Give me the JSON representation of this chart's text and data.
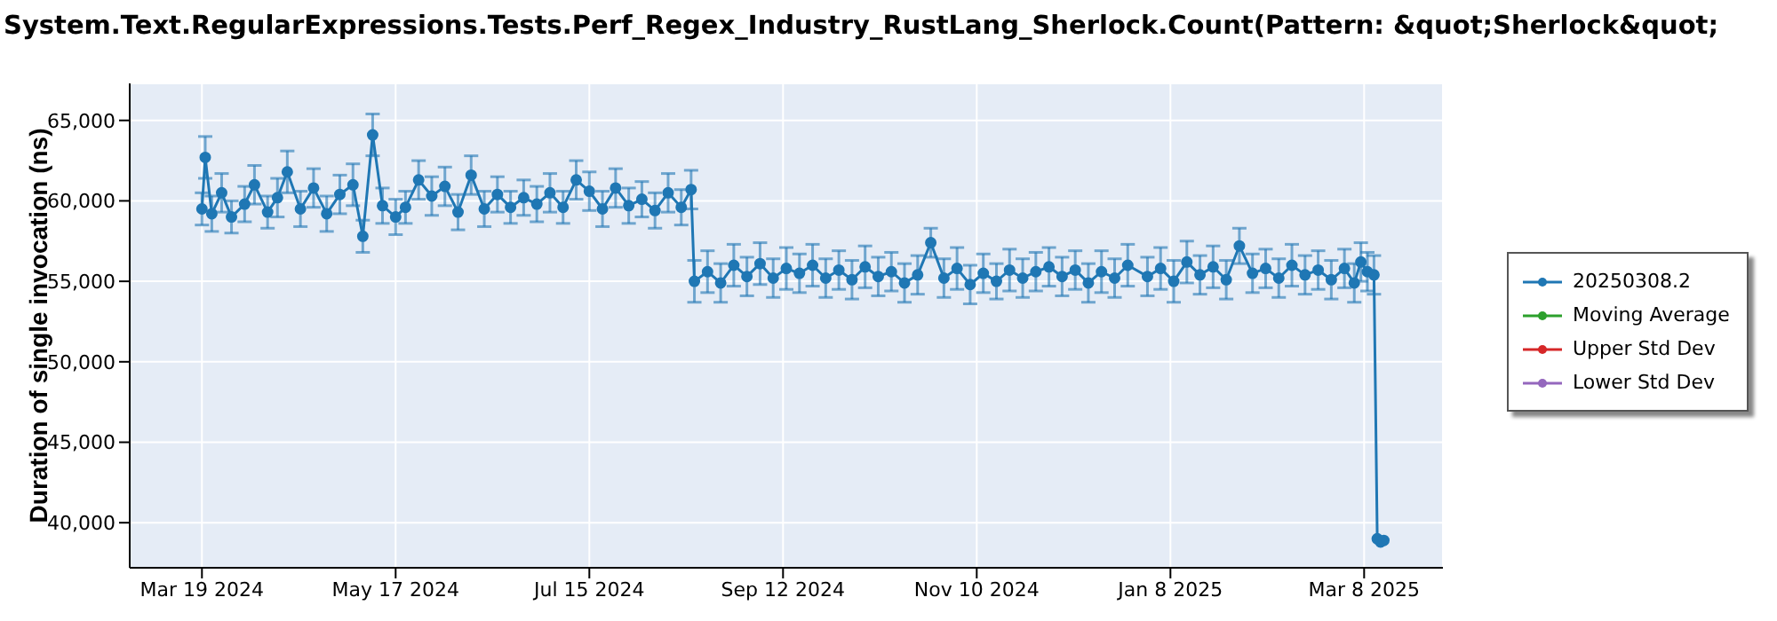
{
  "chart_data": {
    "type": "line",
    "title": "System.Text.RegularExpressions.Tests.Perf_Regex_Industry_RustLang_Sherlock.Count(Pattern: &quot;Sherlock&quot;",
    "ylabel": "Duration of single invocation (ns)",
    "xlim": [
      "2024-02-26",
      "2025-04-01"
    ],
    "xticks": [
      {
        "value": "2024-03-19",
        "label": "Mar 19 2024"
      },
      {
        "value": "2024-05-17",
        "label": "May 17 2024"
      },
      {
        "value": "2024-07-15",
        "label": "Jul 15 2024"
      },
      {
        "value": "2024-09-12",
        "label": "Sep 12 2024"
      },
      {
        "value": "2024-11-10",
        "label": "Nov 10 2024"
      },
      {
        "value": "2025-01-08",
        "label": "Jan 8 2025"
      },
      {
        "value": "2025-03-08",
        "label": "Mar 8 2025"
      }
    ],
    "ylim": [
      37200,
      67300
    ],
    "yticks": [
      {
        "value": 40000,
        "label": "40,000"
      },
      {
        "value": 45000,
        "label": "45,000"
      },
      {
        "value": 50000,
        "label": "50,000"
      },
      {
        "value": 55000,
        "label": "55,000"
      },
      {
        "value": 60000,
        "label": "60,000"
      },
      {
        "value": 65000,
        "label": "65,000"
      }
    ],
    "grid": true,
    "legend": "right",
    "marker": "circle",
    "line_style": "solid",
    "series": [
      {
        "name": "20250308.2",
        "color": "#1f77b4",
        "x": [
          "2024-03-19",
          "2024-03-20",
          "2024-03-22",
          "2024-03-25",
          "2024-03-28",
          "2024-04-01",
          "2024-04-04",
          "2024-04-08",
          "2024-04-11",
          "2024-04-14",
          "2024-04-18",
          "2024-04-22",
          "2024-04-26",
          "2024-04-30",
          "2024-05-04",
          "2024-05-07",
          "2024-05-10",
          "2024-05-13",
          "2024-05-17",
          "2024-05-20",
          "2024-05-24",
          "2024-05-28",
          "2024-06-01",
          "2024-06-05",
          "2024-06-09",
          "2024-06-13",
          "2024-06-17",
          "2024-06-21",
          "2024-06-25",
          "2024-06-29",
          "2024-07-03",
          "2024-07-07",
          "2024-07-11",
          "2024-07-15",
          "2024-07-19",
          "2024-07-23",
          "2024-07-27",
          "2024-07-31",
          "2024-08-04",
          "2024-08-08",
          "2024-08-12",
          "2024-08-15",
          "2024-08-16",
          "2024-08-20",
          "2024-08-24",
          "2024-08-28",
          "2024-09-01",
          "2024-09-05",
          "2024-09-09",
          "2024-09-13",
          "2024-09-17",
          "2024-09-21",
          "2024-09-25",
          "2024-09-29",
          "2024-10-03",
          "2024-10-07",
          "2024-10-11",
          "2024-10-15",
          "2024-10-19",
          "2024-10-23",
          "2024-10-27",
          "2024-10-31",
          "2024-11-04",
          "2024-11-08",
          "2024-11-12",
          "2024-11-16",
          "2024-11-20",
          "2024-11-24",
          "2024-11-28",
          "2024-12-02",
          "2024-12-06",
          "2024-12-10",
          "2024-12-14",
          "2024-12-18",
          "2024-12-22",
          "2024-12-26",
          "2025-01-01",
          "2025-01-05",
          "2025-01-09",
          "2025-01-13",
          "2025-01-17",
          "2025-01-21",
          "2025-01-25",
          "2025-01-29",
          "2025-02-02",
          "2025-02-06",
          "2025-02-10",
          "2025-02-14",
          "2025-02-18",
          "2025-02-22",
          "2025-02-26",
          "2025-03-02",
          "2025-03-05",
          "2025-03-07",
          "2025-03-09",
          "2025-03-11",
          "2025-03-12",
          "2025-03-13",
          "2025-03-14"
        ],
        "values": [
          59500,
          62700,
          59200,
          60500,
          59000,
          59800,
          61000,
          59300,
          60200,
          61800,
          59500,
          60800,
          59200,
          60400,
          61000,
          57800,
          64100,
          59700,
          59000,
          59600,
          61300,
          60300,
          60900,
          59300,
          61600,
          59500,
          60400,
          59600,
          60200,
          59800,
          60500,
          59600,
          61300,
          60600,
          59500,
          60800,
          59700,
          60100,
          59400,
          60500,
          59600,
          60700,
          55000,
          55600,
          54900,
          56000,
          55300,
          56100,
          55200,
          55800,
          55500,
          56000,
          55200,
          55700,
          55100,
          55900,
          55300,
          55600,
          54900,
          55400,
          57400,
          55200,
          55800,
          54800,
          55500,
          55000,
          55700,
          55200,
          55600,
          55900,
          55300,
          55700,
          54900,
          55600,
          55200,
          56000,
          55300,
          55800,
          55000,
          56200,
          55400,
          55900,
          55100,
          57200,
          55500,
          55800,
          55200,
          56000,
          55400,
          55700,
          55100,
          55800,
          54900,
          56200,
          55600,
          55400,
          39000,
          38800,
          38900
        ],
        "errors": [
          1000,
          1300,
          1100,
          1200,
          1000,
          1100,
          1200,
          1000,
          1200,
          1300,
          1100,
          1200,
          1100,
          1200,
          1300,
          1000,
          1300,
          1100,
          1100,
          1000,
          1200,
          1200,
          1200,
          1100,
          1200,
          1100,
          1100,
          1000,
          1100,
          1100,
          1200,
          1000,
          1200,
          1200,
          1100,
          1200,
          1100,
          1100,
          1100,
          1200,
          1100,
          1200,
          1300,
          1300,
          1200,
          1300,
          1200,
          1300,
          1200,
          1300,
          1200,
          1300,
          1200,
          1200,
          1200,
          1300,
          1200,
          1200,
          1200,
          1200,
          900,
          1200,
          1300,
          1200,
          1200,
          1100,
          1300,
          1200,
          1200,
          1200,
          1200,
          1200,
          1200,
          1300,
          1200,
          1300,
          1200,
          1300,
          1300,
          1300,
          1200,
          1300,
          1200,
          1100,
          1200,
          1200,
          1200,
          1300,
          1200,
          1200,
          1200,
          1200,
          1200,
          1200,
          1200,
          1200,
          null,
          null,
          null
        ]
      },
      {
        "name": "Moving Average",
        "color": "#2ca02c"
      },
      {
        "name": "Upper Std Dev",
        "color": "#d62728"
      },
      {
        "name": "Lower Std Dev",
        "color": "#9467bd"
      }
    ]
  }
}
